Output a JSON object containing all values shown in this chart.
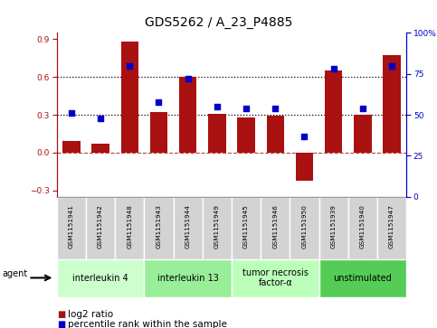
{
  "title": "GDS5262 / A_23_P4885",
  "samples": [
    "GSM1151941",
    "GSM1151942",
    "GSM1151948",
    "GSM1151943",
    "GSM1151944",
    "GSM1151949",
    "GSM1151945",
    "GSM1151946",
    "GSM1151950",
    "GSM1151939",
    "GSM1151940",
    "GSM1151947"
  ],
  "log2_ratio": [
    0.09,
    0.07,
    0.88,
    0.32,
    0.6,
    0.31,
    0.28,
    0.29,
    -0.22,
    0.65,
    0.3,
    0.77
  ],
  "percentile_rank": [
    51,
    48,
    80,
    58,
    72,
    55,
    54,
    54,
    37,
    78,
    54,
    80
  ],
  "agents": [
    {
      "label": "interleukin 4",
      "start": 0,
      "end": 3,
      "color": "#ccffcc"
    },
    {
      "label": "interleukin 13",
      "start": 3,
      "end": 6,
      "color": "#99ee99"
    },
    {
      "label": "tumor necrosis\nfactor-α",
      "start": 6,
      "end": 9,
      "color": "#bbffbb"
    },
    {
      "label": "unstimulated",
      "start": 9,
      "end": 12,
      "color": "#55cc55"
    }
  ],
  "bar_color": "#aa1111",
  "dot_color": "#0000cc",
  "ylim_left": [
    -0.35,
    0.95
  ],
  "ylim_right": [
    0,
    100
  ],
  "yticks_left": [
    -0.3,
    0.0,
    0.3,
    0.6,
    0.9
  ],
  "yticks_right": [
    0,
    25,
    50,
    75,
    100
  ],
  "hline_y": [
    0.3,
    0.6
  ],
  "hline_zero": 0.0,
  "bg_color": "#ffffff",
  "bar_width": 0.6,
  "title_fontsize": 10,
  "tick_fontsize": 6.5,
  "legend_fontsize": 7.5,
  "sample_fontsize": 5.2,
  "agent_fontsize": 7
}
